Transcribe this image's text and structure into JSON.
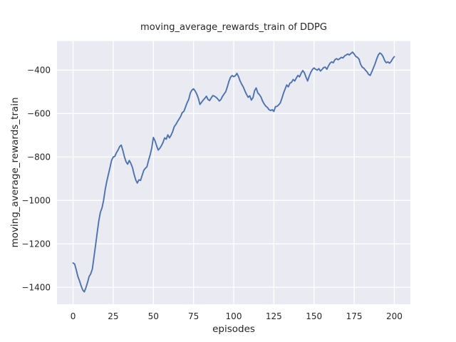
{
  "chart_data": {
    "type": "line",
    "title": "moving_average_rewards_train of DDPG",
    "xlabel": "episodes",
    "ylabel": "moving_average_rewards_train",
    "legend": "none",
    "grid": true,
    "plot_bg_color": "#eaeaf2",
    "grid_color": "#ffffff",
    "text_color": "#262626",
    "xlim": [
      -10,
      210
    ],
    "ylim": [
      -1478,
      -266
    ],
    "xticks": {
      "values": [
        0,
        25,
        50,
        75,
        100,
        125,
        150,
        175,
        200
      ],
      "labels": [
        "0",
        "25",
        "50",
        "75",
        "100",
        "125",
        "150",
        "175",
        "200"
      ]
    },
    "yticks": {
      "values": [
        -400,
        -600,
        -800,
        -1000,
        -1200,
        -1400
      ],
      "labels": [
        "−400",
        "−600",
        "−800",
        "−1000",
        "−1200",
        "−1400"
      ]
    },
    "x_start": 0,
    "x_step": 1,
    "series": [
      {
        "name": "moving_average_rewards_train",
        "color": "#4c72b0",
        "values": [
          -1288,
          -1293,
          -1320,
          -1350,
          -1370,
          -1393,
          -1412,
          -1421,
          -1402,
          -1378,
          -1350,
          -1338,
          -1316,
          -1262,
          -1207,
          -1150,
          -1095,
          -1055,
          -1035,
          -1000,
          -950,
          -912,
          -880,
          -848,
          -815,
          -800,
          -797,
          -780,
          -768,
          -752,
          -745,
          -770,
          -800,
          -822,
          -833,
          -816,
          -830,
          -849,
          -880,
          -905,
          -920,
          -905,
          -908,
          -885,
          -862,
          -852,
          -845,
          -815,
          -790,
          -758,
          -710,
          -725,
          -748,
          -768,
          -760,
          -748,
          -733,
          -712,
          -718,
          -698,
          -712,
          -700,
          -683,
          -660,
          -650,
          -637,
          -625,
          -613,
          -595,
          -590,
          -570,
          -550,
          -535,
          -505,
          -492,
          -486,
          -496,
          -510,
          -530,
          -558,
          -548,
          -538,
          -530,
          -520,
          -535,
          -540,
          -528,
          -517,
          -520,
          -525,
          -532,
          -542,
          -536,
          -521,
          -510,
          -500,
          -478,
          -452,
          -433,
          -425,
          -430,
          -426,
          -415,
          -430,
          -450,
          -465,
          -478,
          -496,
          -512,
          -525,
          -518,
          -538,
          -527,
          -495,
          -482,
          -505,
          -513,
          -524,
          -543,
          -556,
          -566,
          -572,
          -582,
          -586,
          -582,
          -590,
          -568,
          -567,
          -560,
          -551,
          -530,
          -506,
          -487,
          -468,
          -477,
          -460,
          -456,
          -443,
          -450,
          -436,
          -424,
          -431,
          -414,
          -402,
          -412,
          -432,
          -450,
          -428,
          -410,
          -397,
          -390,
          -396,
          -400,
          -393,
          -404,
          -397,
          -388,
          -386,
          -396,
          -380,
          -368,
          -362,
          -366,
          -352,
          -347,
          -352,
          -347,
          -341,
          -344,
          -335,
          -330,
          -326,
          -330,
          -323,
          -317,
          -326,
          -337,
          -341,
          -349,
          -373,
          -386,
          -391,
          -400,
          -408,
          -420,
          -424,
          -407,
          -389,
          -371,
          -349,
          -330,
          -321,
          -326,
          -338,
          -356,
          -366,
          -362,
          -368,
          -360,
          -347,
          -338
        ]
      }
    ]
  }
}
